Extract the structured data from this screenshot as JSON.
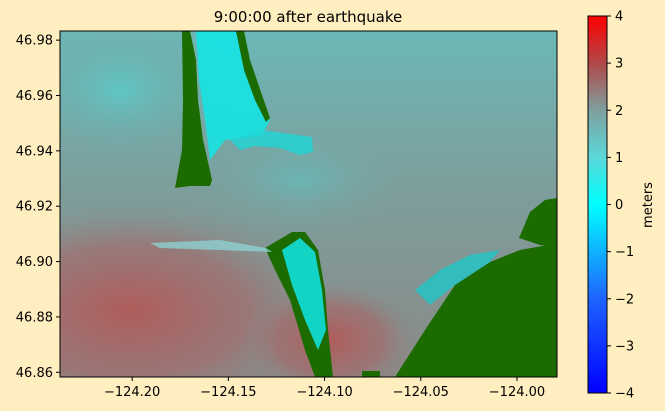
{
  "chart_data": {
    "type": "heatmap",
    "title": "9:00:00 after earthquake",
    "xlabel": "",
    "ylabel": "",
    "xlim": [
      -124.2375,
      -123.9792
    ],
    "ylim": [
      46.8583,
      46.9833
    ],
    "x_ticks": [
      -124.2,
      -124.15,
      -124.1,
      -124.05,
      -124.0
    ],
    "x_tick_labels": [
      "−124.20",
      "−124.15",
      "−124.10",
      "−124.05",
      "−124.00"
    ],
    "y_ticks": [
      46.86,
      46.88,
      46.9,
      46.92,
      46.94,
      46.96,
      46.98
    ],
    "y_tick_labels": [
      "46.86",
      "46.88",
      "46.90",
      "46.92",
      "46.94",
      "46.96",
      "46.98"
    ],
    "colorbar": {
      "label": "meters",
      "range": [
        -4,
        4
      ],
      "ticks": [
        -4,
        -3,
        -2,
        -1,
        0,
        1,
        2,
        3,
        4
      ],
      "tick_labels": [
        "−4",
        "−3",
        "−2",
        "−1",
        "0",
        "1",
        "2",
        "3",
        "4"
      ],
      "colormap_stops": [
        {
          "value": -4,
          "color": "#0000ff"
        },
        {
          "value": -2,
          "color": "#1e64ff"
        },
        {
          "value": 0,
          "color": "#00ffff"
        },
        {
          "value": 1,
          "color": "#5ad8d8"
        },
        {
          "value": 2,
          "color": "#7f9f9f"
        },
        {
          "value": 3,
          "color": "#b04848"
        },
        {
          "value": 4,
          "color": "#ff0000"
        }
      ]
    },
    "field": {
      "background_level_m": 1.9,
      "offshore_level_m": 2.7,
      "nearshore_level_m": 1.6,
      "channel_level_m": 0.9
    },
    "land_color": "#1c6b00",
    "grid": false,
    "legend": "none"
  }
}
